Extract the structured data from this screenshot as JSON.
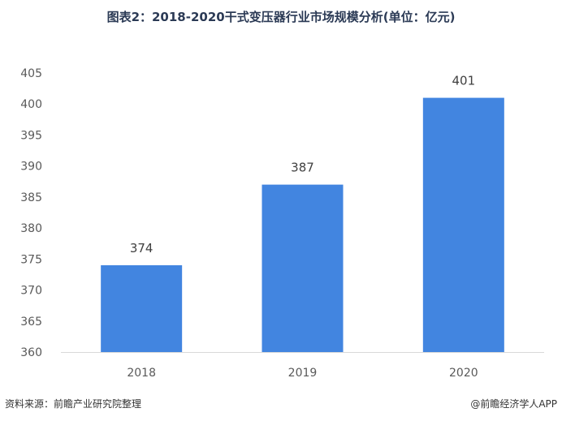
{
  "chart_data": {
    "type": "bar",
    "title": "图表2：2018-2020干式变压器行业市场规模分析(单位：亿元)",
    "categories": [
      "2018",
      "2019",
      "2020"
    ],
    "values": [
      374,
      387,
      401
    ],
    "ylim": [
      360,
      405
    ],
    "yticks": [
      360,
      365,
      370,
      375,
      380,
      385,
      390,
      395,
      400,
      405
    ],
    "xlabel": "",
    "ylabel": "",
    "grid": false,
    "bar_color": "#4285e0",
    "show_data_labels": true
  },
  "footer": {
    "source": "资料来源：前瞻产业研究院整理",
    "brand": "@前瞻经济学人APP"
  }
}
